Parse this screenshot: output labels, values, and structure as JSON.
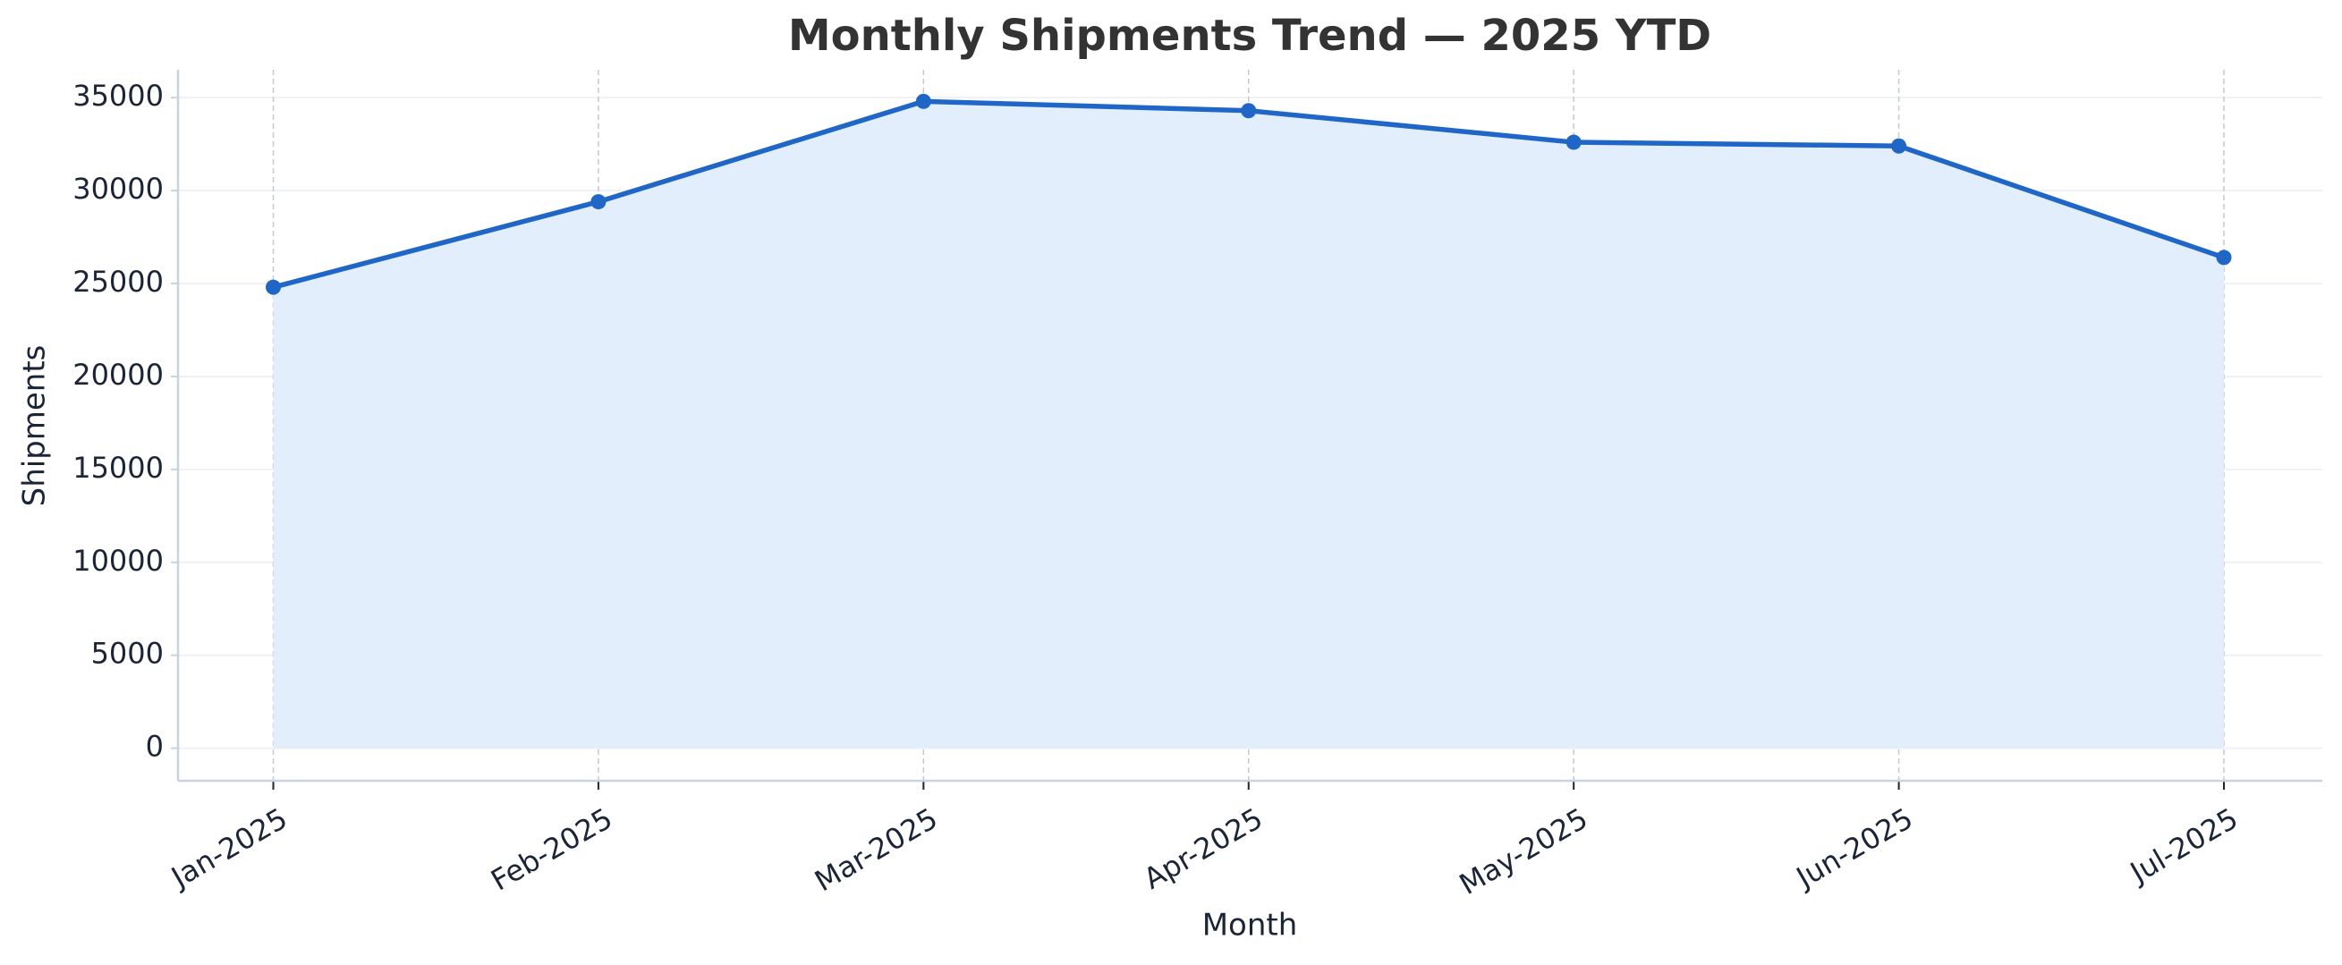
{
  "chart_data": {
    "type": "area-line",
    "title": "Monthly Shipments Trend — 2025 YTD",
    "x_label": "Month",
    "y_label": "Shipments",
    "categories": [
      "Jan-2025",
      "Feb-2025",
      "Mar-2025",
      "Apr-2025",
      "May-2025",
      "Jun-2025",
      "Jul-2025"
    ],
    "series": [
      {
        "name": "Shipments",
        "color": "#1f66c6",
        "fill": "#e3eefd",
        "values": [
          24800,
          29400,
          34800,
          34300,
          32600,
          32400,
          26400
        ]
      }
    ],
    "ylim": [
      -1750,
      36500
    ],
    "yticks": [
      0,
      5000,
      10000,
      15000,
      20000,
      25000,
      30000,
      35000
    ],
    "grid": true
  }
}
